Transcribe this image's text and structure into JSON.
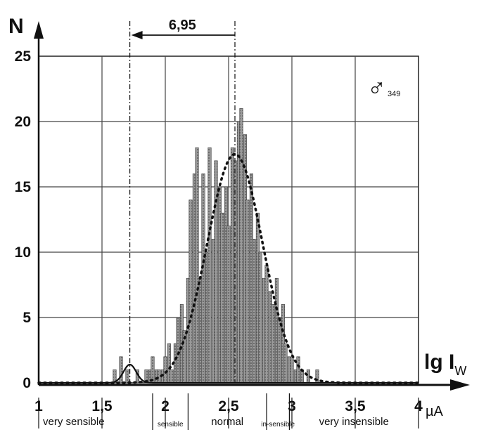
{
  "chart_data": {
    "type": "bar",
    "title": "",
    "xlabel": "lg I",
    "xlabel_subscript": "W",
    "ylabel": "N",
    "xunit": "µA",
    "xlim": [
      1,
      4
    ],
    "ylim": [
      0,
      25
    ],
    "grid": true,
    "x_ticks": [
      1,
      1.5,
      2,
      2.5,
      3,
      3.5,
      4
    ],
    "x_tick_labels": [
      "1",
      "1,5",
      "2",
      "2,5",
      "3",
      "3,5",
      "4"
    ],
    "y_ticks": [
      0,
      5,
      10,
      15,
      20,
      25
    ],
    "y_tick_labels": [
      "0",
      "5",
      "10",
      "15",
      "20",
      "25"
    ],
    "symbol": "♂",
    "symbol_subscript": "349",
    "annotation": {
      "label": "6,95",
      "from_x": 2.55,
      "to_x": 1.72
    },
    "regions": [
      {
        "label": "very sensible",
        "from": 1.0,
        "to": 1.9
      },
      {
        "label": "sensible",
        "from": 1.9,
        "to": 2.18
      },
      {
        "label": "normal",
        "from": 2.18,
        "to": 2.8
      },
      {
        "label": "in-sensible",
        "from": 2.8,
        "to": 2.98
      },
      {
        "label": "very insensible",
        "from": 2.98,
        "to": 4.0
      }
    ],
    "histogram": {
      "name": "main",
      "bin_width": 0.025,
      "x": [
        1.51,
        1.53,
        1.55,
        1.58,
        1.6,
        1.63,
        1.65,
        1.68,
        1.7,
        1.73,
        1.75,
        1.78,
        1.8,
        1.83,
        1.85,
        1.88,
        1.9,
        1.93,
        1.95,
        1.98,
        2.0,
        2.03,
        2.05,
        2.08,
        2.1,
        2.13,
        2.15,
        2.18,
        2.2,
        2.23,
        2.25,
        2.28,
        2.3,
        2.33,
        2.35,
        2.38,
        2.4,
        2.43,
        2.45,
        2.48,
        2.5,
        2.53,
        2.55,
        2.58,
        2.6,
        2.63,
        2.65,
        2.68,
        2.7,
        2.73,
        2.75,
        2.78,
        2.8,
        2.83,
        2.85,
        2.88,
        2.9,
        2.93,
        2.95,
        2.98,
        3.0,
        3.03,
        3.05,
        3.08,
        3.1,
        3.13,
        3.15,
        3.18,
        3.2,
        3.23
      ],
      "values": [
        0,
        0,
        0,
        0,
        1,
        0,
        2,
        0,
        1,
        0,
        0,
        1,
        0,
        0,
        1,
        1,
        2,
        1,
        1,
        1,
        2,
        3,
        1,
        3,
        5,
        6,
        4,
        8,
        14,
        16,
        18,
        8,
        16,
        10,
        18,
        11,
        17,
        15,
        13,
        15,
        12,
        18,
        17,
        20,
        21,
        19,
        14,
        16,
        11,
        13,
        10,
        8,
        9,
        7,
        6,
        8,
        5,
        6,
        3,
        2,
        2,
        1,
        2,
        1,
        0,
        1,
        0,
        0,
        1,
        0
      ]
    },
    "series": [
      {
        "name": "",
        "style": "dotted",
        "mean": 2.55,
        "sd": 0.22,
        "peak": 17.5
      },
      {
        "name": "",
        "style": "solid",
        "mean": 1.72,
        "sd": 0.05,
        "peak": 1.4
      }
    ]
  }
}
